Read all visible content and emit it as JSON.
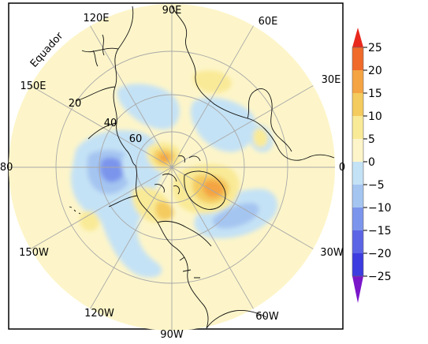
{
  "map": {
    "projection": "north polar stereographic",
    "background_color": "#fdf5c9",
    "longitude_labels": {
      "lon_90e": "90E",
      "lon_60e": "60E",
      "lon_30e": "30E",
      "lon_0": "0",
      "lon_30w": "30W",
      "lon_60w": "60W",
      "lon_90w": "90W",
      "lon_120w": "120W",
      "lon_150w": "150W",
      "lon_180": "180",
      "lon_150e": "150E",
      "lon_120e": "120E"
    },
    "latitude_labels": {
      "lat_20": "20",
      "lat_40": "40",
      "lat_60": "60"
    },
    "equator_label": "Equador",
    "anomaly_centers": [
      {
        "name": "North Atlantic / Greenland",
        "sign": "positive",
        "peak_level": 15
      },
      {
        "name": "Arctic Siberia",
        "sign": "positive",
        "peak_level": 15
      },
      {
        "name": "North Pacific (Aleutian)",
        "sign": "negative",
        "peak_level": -15
      },
      {
        "name": "North Atlantic (30-40N)",
        "sign": "negative",
        "peak_level": -10
      },
      {
        "name": "Western North America",
        "sign": "positive",
        "peak_level": 10
      }
    ]
  },
  "colorbar": {
    "ticks": [
      "25",
      "20",
      "15",
      "10",
      "5",
      "0",
      "−5",
      "−10",
      "−15",
      "−20",
      "−25"
    ],
    "levels": [
      {
        "range": "> 25",
        "color": "#e8281d"
      },
      {
        "range": "20 to 25",
        "color": "#f06a2a"
      },
      {
        "range": "15 to 20",
        "color": "#f4a443"
      },
      {
        "range": "10 to 15",
        "color": "#f4cb5e"
      },
      {
        "range": "5 to 10",
        "color": "#f9ea97"
      },
      {
        "range": "0 to 5",
        "color": "#fdf5c9"
      },
      {
        "range": "-5 to 0",
        "color": "#c4e2f5"
      },
      {
        "range": "-10 to -5",
        "color": "#a5c5f1"
      },
      {
        "range": "-15 to -10",
        "color": "#7c95ec"
      },
      {
        "range": "-20 to -15",
        "color": "#5c64e6"
      },
      {
        "range": "-25 to -20",
        "color": "#3c3ce0"
      },
      {
        "range": "< -25",
        "color": "#7a16c9"
      }
    ]
  }
}
